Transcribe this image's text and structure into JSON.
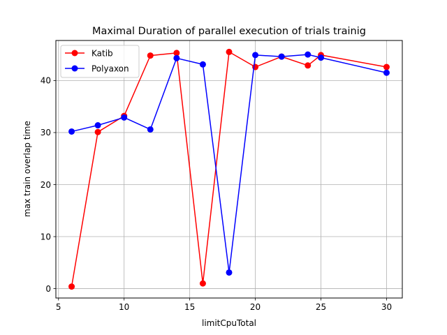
{
  "chart_data": {
    "type": "line",
    "title": "Maximal Duration of parallel execution of trials trainig",
    "xlabel": "limitCpuTotal",
    "ylabel": "max train overlap time",
    "xlim": [
      4.8,
      31.2
    ],
    "ylim": [
      -1.8,
      47.7
    ],
    "xticks": [
      5,
      10,
      15,
      20,
      25,
      30
    ],
    "yticks": [
      0,
      10,
      20,
      30,
      40
    ],
    "grid": true,
    "legend_position": "upper-left",
    "series": [
      {
        "name": "Katib",
        "color": "#ff0000",
        "x": [
          6,
          8,
          10,
          12,
          14,
          16,
          18,
          20,
          22,
          24,
          25,
          30
        ],
        "y": [
          0.4,
          30.1,
          33.2,
          44.8,
          45.3,
          1.0,
          45.5,
          42.6,
          44.6,
          42.9,
          44.9,
          42.6
        ]
      },
      {
        "name": "Polyaxon",
        "color": "#0000ff",
        "x": [
          6,
          8,
          10,
          12,
          14,
          16,
          18,
          20,
          22,
          24,
          25,
          30
        ],
        "y": [
          30.2,
          31.4,
          32.9,
          30.6,
          44.3,
          43.1,
          3.1,
          44.9,
          44.6,
          45.0,
          44.4,
          41.5
        ]
      }
    ]
  }
}
